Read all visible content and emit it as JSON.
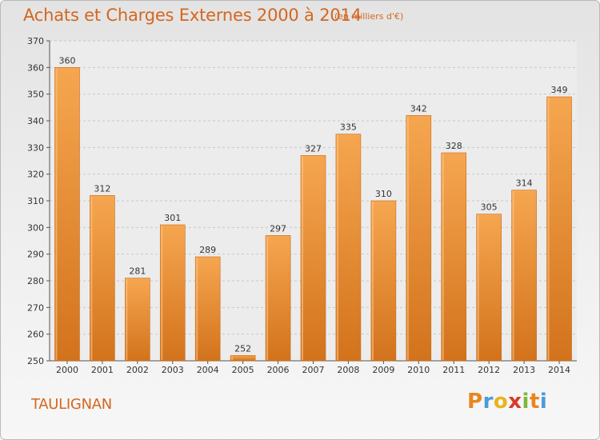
{
  "header": {
    "title": "Achats et Charges Externes 2000 à 2014",
    "unit": "(en milliers d'€)"
  },
  "footer": {
    "city": "TAULIGNAN",
    "brand_letters": [
      "P",
      "r",
      "o",
      "x",
      "i",
      "t",
      "i"
    ],
    "brand_colors": [
      "#e8861e",
      "#4a9bd8",
      "#e8b41e",
      "#d93a2b",
      "#7cb83a",
      "#e8861e",
      "#4a9bd8"
    ]
  },
  "colors": {
    "bar_top": "#f6a650",
    "bar_bottom": "#d2731c",
    "title": "#d4671f"
  },
  "chart_data": {
    "type": "bar",
    "title": "Achats et Charges Externes 2000 à 2014",
    "categories": [
      "2000",
      "2001",
      "2002",
      "2003",
      "2004",
      "2005",
      "2006",
      "2007",
      "2008",
      "2009",
      "2010",
      "2011",
      "2012",
      "2013",
      "2014"
    ],
    "values": [
      360,
      312,
      281,
      301,
      289,
      252,
      297,
      327,
      335,
      310,
      342,
      328,
      305,
      314,
      349
    ],
    "ylim": [
      250,
      370
    ],
    "yticks": [
      250,
      260,
      270,
      280,
      290,
      300,
      310,
      320,
      330,
      340,
      350,
      360,
      370
    ],
    "grid": true,
    "xlabel": "",
    "ylabel": ""
  }
}
